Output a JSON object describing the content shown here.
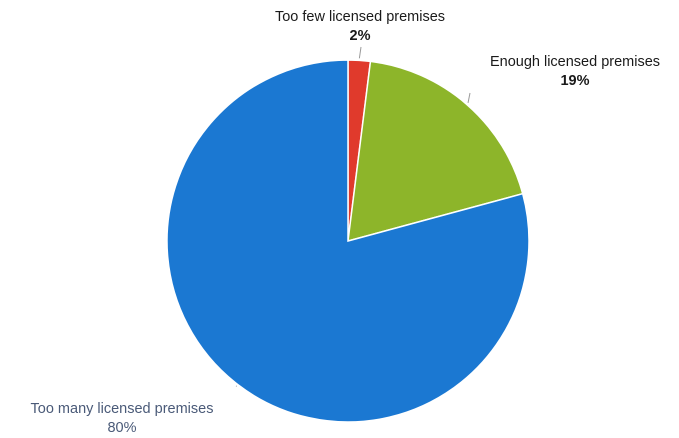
{
  "chart_data": {
    "type": "pie",
    "title": "",
    "slices": [
      {
        "label": "Too few licensed premises",
        "value": 2,
        "value_label": "2%",
        "color": "#e03a2c"
      },
      {
        "label": "Enough licensed premises",
        "value": 19,
        "value_label": "19%",
        "color": "#8db52a"
      },
      {
        "label": "Too many licensed premises",
        "value": 80,
        "value_label": "80%",
        "color": "#1b78d2"
      }
    ],
    "start_angle_deg": 0,
    "direction": "clockwise",
    "legend": "none"
  }
}
